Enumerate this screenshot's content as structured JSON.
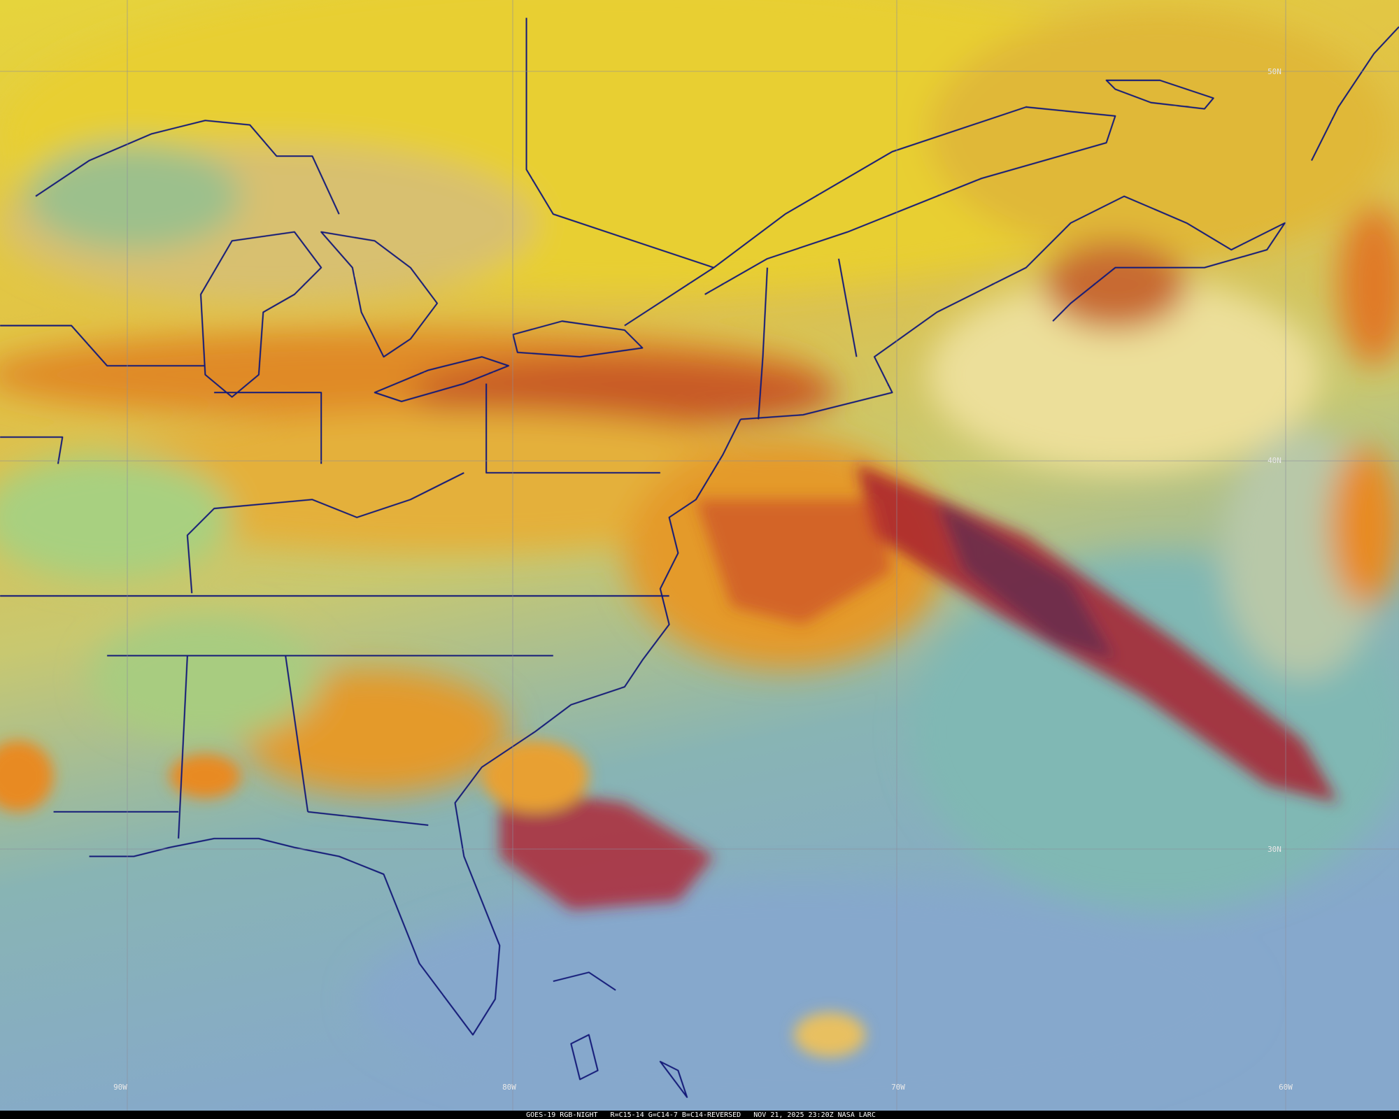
{
  "map": {
    "latitude_labels": [
      "50N",
      "40N",
      "30N"
    ],
    "longitude_labels": [
      "90W",
      "80W",
      "70W",
      "60W"
    ],
    "footer": "GOES-19 RGB-NIGHT   R=C15-14 G=C14-7 B=C14-REVERSED   NOV 21, 2025 23:20Z NASA LARC"
  }
}
